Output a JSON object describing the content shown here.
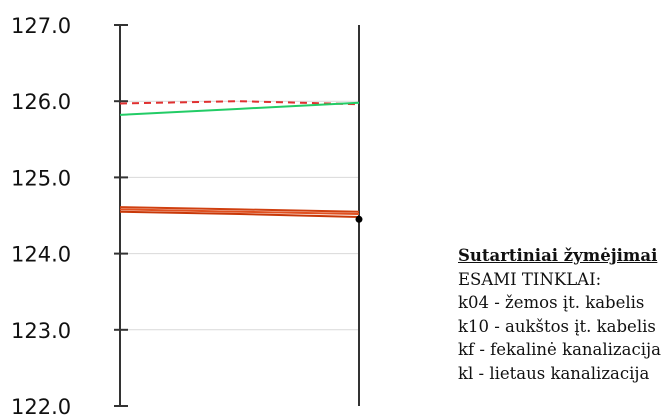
{
  "chart_data": {
    "type": "line",
    "title": "",
    "xlabel": "",
    "ylabel": "",
    "ylim": [
      122.0,
      127.0
    ],
    "yticks": [
      127.0,
      126.0,
      125.0,
      124.0,
      123.0,
      122.0
    ],
    "ytick_labels": [
      "127.0",
      "126.0",
      "125.0",
      "124.0",
      "123.0",
      "122.0"
    ],
    "grid": true,
    "x": [
      0,
      0.5,
      1
    ],
    "series": [
      {
        "values": [
          125.97,
          126.0,
          125.96
        ],
        "color": "#e03030",
        "style": "dashed"
      },
      {
        "values": [
          125.82,
          125.9,
          125.98
        ],
        "color": "#22cc66",
        "style": "solid"
      },
      {
        "values": [
          124.61,
          124.58,
          124.55
        ],
        "color": "#d04010",
        "style": "solid"
      },
      {
        "values": [
          124.58,
          124.55,
          124.52
        ],
        "color": "#e05020",
        "style": "solid"
      },
      {
        "values": [
          124.55,
          124.52,
          124.48
        ],
        "color": "#c83808",
        "style": "solid"
      }
    ],
    "markers": [
      {
        "x": 1,
        "y": 124.45,
        "color": "#000000"
      }
    ]
  },
  "legend": {
    "title": "Sutartiniai žymėjimai",
    "lines": [
      "ESAMI TINKLAI:",
      "k04 - žemos įt. kabelis",
      "k10 - aukštos įt. kabelis",
      "kf    - fekalinė kanalizacija",
      "kl    - lietaus kanalizacija"
    ]
  }
}
